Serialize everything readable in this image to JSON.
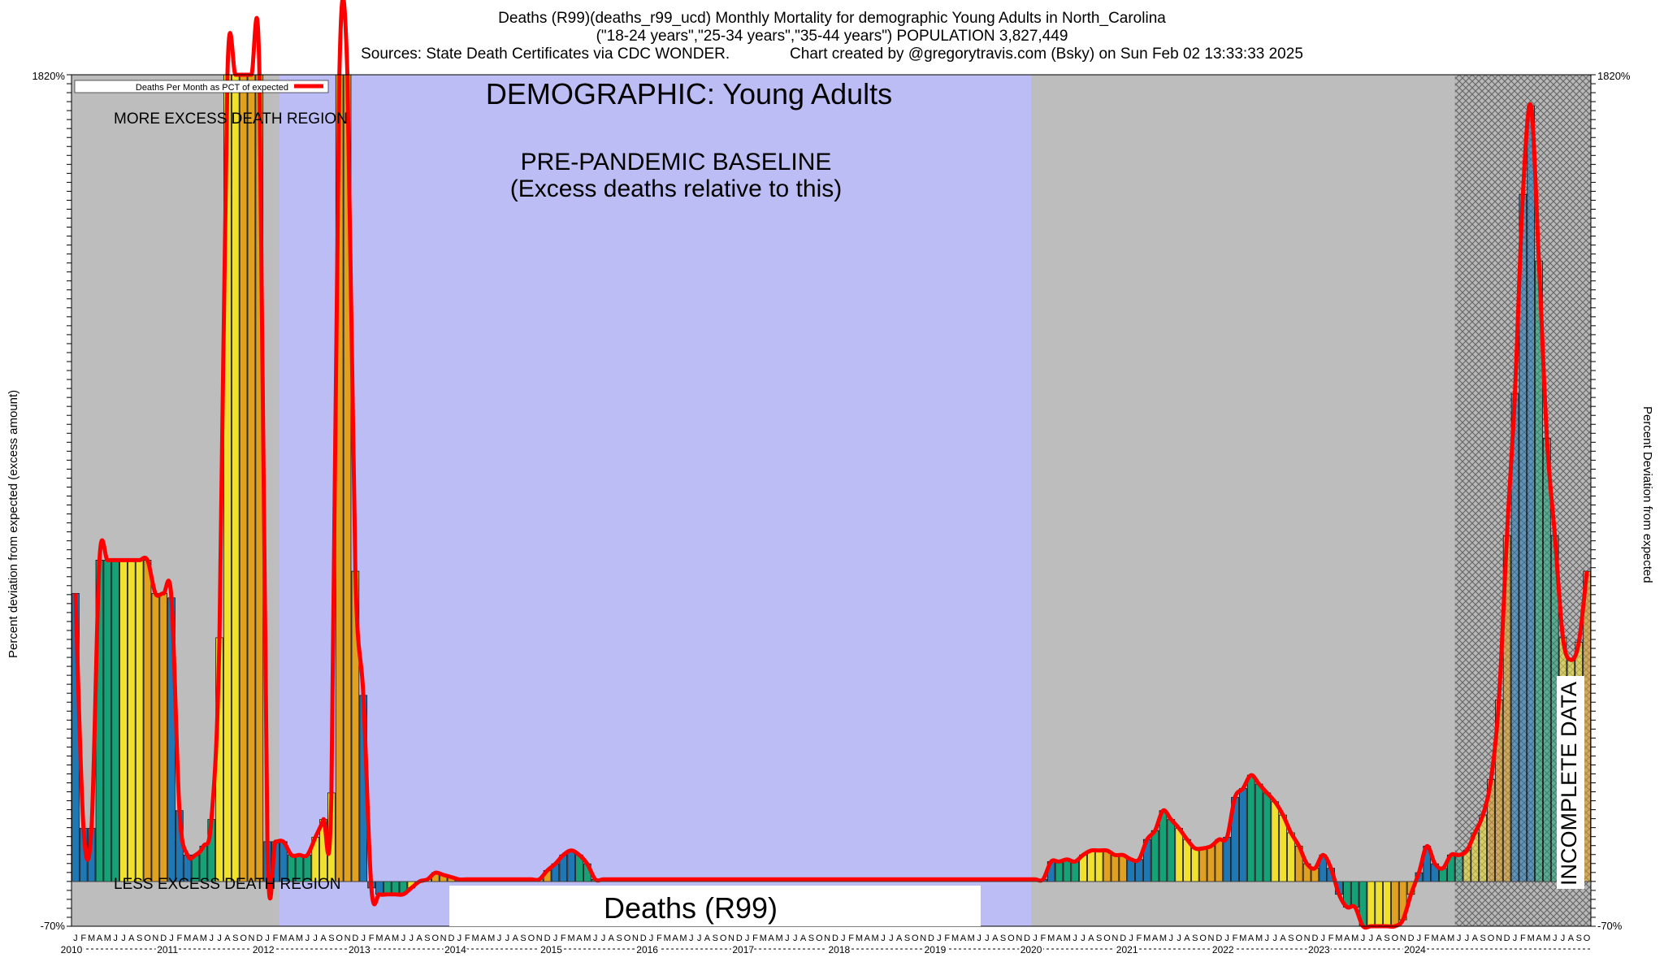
{
  "header": {
    "line1": "Deaths (R99)(deaths_r99_ucd) Monthly Mortality for demographic Young Adults in North_Carolina",
    "line2": "(\"18-24 years\",\"25-34 years\",\"35-44 years\") POPULATION 3,827,449",
    "line3_left": "Sources: State Death Certificates via CDC WONDER.",
    "line3_right": "Chart created by @gregorytravis.com (Bsky) on Sun Feb 02 13:33:33 2025"
  },
  "colors": {
    "grey_region": "#bdbdbd",
    "baseline_region": "#bdbdf5",
    "line": "#ff0000",
    "hatch": "#8c8c8c",
    "bar_palette": [
      "#1f77b4",
      "#17a177",
      "#f0e030",
      "#e0a020"
    ]
  },
  "chart_data": {
    "type": "bar",
    "title": "DEMOGRAPHIC: Young Adults",
    "baseline_label_1": "PRE-PANDEMIC BASELINE",
    "baseline_label_2": "(Excess deaths relative to this)",
    "more_region_label": "MORE EXCESS DEATH REGION",
    "less_region_label": "LESS EXCESS DEATH REGION",
    "incomplete_label": "INCOMPLETE DATA",
    "cause_label": "Deaths (R99)",
    "legend_label": "Deaths Per Month as PCT of expected",
    "ylabel_left": "Percent deviation from expected (excess amount)",
    "ylabel_right": "Percent Deviation from expected",
    "ylim": [
      -70,
      1820
    ],
    "ytick_top": "1820%",
    "ytick_bottom": "-70%",
    "years": [
      "2010",
      "2011",
      "2012",
      "2013",
      "2014",
      "2015",
      "2016",
      "2017",
      "2018",
      "2019",
      "2020",
      "2021",
      "2022",
      "2023",
      "2024"
    ],
    "month_letters": [
      "J",
      "F",
      "M",
      "A",
      "M",
      "J",
      "J",
      "A",
      "S",
      "O",
      "N",
      "D"
    ],
    "baseline_period": [
      "2012-03",
      "2019-12"
    ],
    "incomplete_from": "2024-06",
    "values": [
      650,
      120,
      120,
      725,
      725,
      725,
      725,
      725,
      725,
      725,
      650,
      650,
      640,
      160,
      60,
      60,
      80,
      140,
      550,
      1900,
      1900,
      1900,
      1900,
      1900,
      90,
      90,
      90,
      60,
      60,
      60,
      100,
      140,
      200,
      1820,
      1820,
      700,
      420,
      -10,
      -20,
      -20,
      -20,
      -20,
      -10,
      0,
      5,
      20,
      15,
      10,
      5,
      5,
      5,
      5,
      5,
      5,
      5,
      5,
      5,
      5,
      5,
      25,
      40,
      60,
      70,
      60,
      40,
      5,
      5,
      5,
      5,
      5,
      5,
      5,
      5,
      5,
      5,
      5,
      5,
      5,
      5,
      5,
      5,
      5,
      5,
      5,
      5,
      5,
      5,
      5,
      5,
      5,
      5,
      5,
      5,
      5,
      5,
      5,
      5,
      5,
      5,
      5,
      5,
      5,
      5,
      5,
      5,
      5,
      5,
      5,
      5,
      5,
      5,
      5,
      5,
      5,
      5,
      5,
      5,
      5,
      5,
      5,
      5,
      5,
      45,
      45,
      50,
      45,
      60,
      70,
      70,
      70,
      60,
      60,
      50,
      50,
      95,
      115,
      160,
      140,
      120,
      95,
      75,
      75,
      80,
      95,
      100,
      190,
      210,
      240,
      220,
      200,
      180,
      150,
      110,
      80,
      40,
      30,
      60,
      30,
      -20,
      -40,
      -40,
      -70,
      -90,
      -100,
      -90,
      -80,
      -60,
      -20,
      20,
      80,
      40,
      30,
      60,
      60,
      70,
      110,
      150,
      230,
      410,
      780,
      1100,
      1550,
      1750,
      1400,
      1000,
      780,
      550,
      500,
      540,
      700
    ]
  }
}
